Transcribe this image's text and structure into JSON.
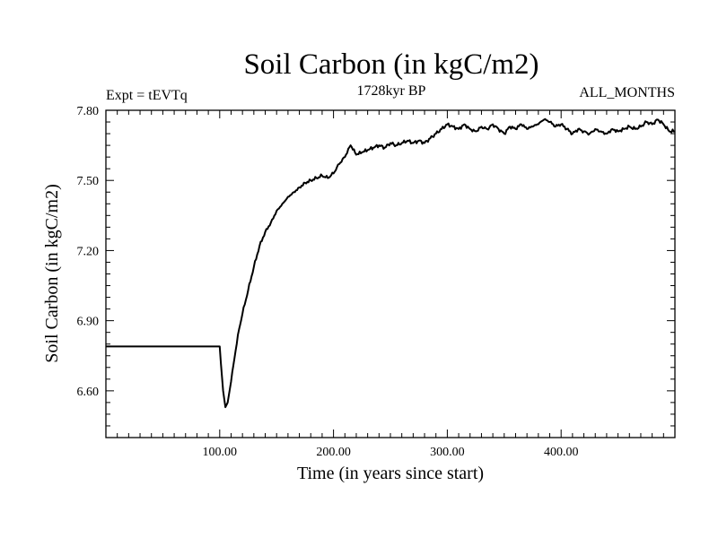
{
  "chart_data": {
    "type": "line",
    "title": "Soil Carbon (in kgC/m2)",
    "subtitle_left": "Expt = tEVTq",
    "subtitle_center": "1728kyr BP",
    "subtitle_right": "ALL_MONTHS",
    "xlabel": "Time (in years since start)",
    "ylabel": "Soil Carbon (in kgC/m2)",
    "xlim": [
      0,
      500
    ],
    "ylim": [
      6.4,
      7.8
    ],
    "xticks": [
      100,
      200,
      300,
      400
    ],
    "xtick_labels": [
      "100.00",
      "200.00",
      "300.00",
      "400.00"
    ],
    "yticks": [
      6.6,
      6.9,
      7.2,
      7.5,
      7.8
    ],
    "ytick_labels": [
      "6.60",
      "6.90",
      "7.20",
      "7.50",
      "7.80"
    ],
    "grid": false,
    "series": [
      {
        "name": "Soil Carbon",
        "color": "#000000",
        "x": [
          0,
          100,
          101,
          103,
          105,
          107,
          110,
          113,
          116,
          120,
          125,
          130,
          135,
          140,
          145,
          150,
          155,
          160,
          165,
          170,
          175,
          180,
          185,
          190,
          195,
          200,
          205,
          210,
          215,
          220,
          225,
          230,
          235,
          240,
          245,
          250,
          255,
          260,
          265,
          270,
          275,
          280,
          285,
          290,
          295,
          300,
          305,
          310,
          315,
          320,
          325,
          330,
          335,
          340,
          345,
          350,
          355,
          360,
          365,
          370,
          375,
          380,
          385,
          390,
          395,
          400,
          405,
          410,
          415,
          420,
          425,
          430,
          435,
          440,
          445,
          450,
          455,
          460,
          465,
          470,
          475,
          480,
          485,
          490,
          495,
          500
        ],
        "values": [
          6.79,
          6.79,
          6.72,
          6.6,
          6.53,
          6.55,
          6.64,
          6.74,
          6.84,
          6.93,
          7.03,
          7.13,
          7.22,
          7.28,
          7.32,
          7.37,
          7.4,
          7.43,
          7.45,
          7.47,
          7.49,
          7.5,
          7.51,
          7.52,
          7.51,
          7.53,
          7.57,
          7.6,
          7.65,
          7.61,
          7.62,
          7.63,
          7.64,
          7.65,
          7.64,
          7.66,
          7.65,
          7.66,
          7.67,
          7.66,
          7.67,
          7.66,
          7.68,
          7.7,
          7.72,
          7.74,
          7.73,
          7.72,
          7.74,
          7.72,
          7.71,
          7.73,
          7.72,
          7.74,
          7.72,
          7.7,
          7.73,
          7.72,
          7.74,
          7.72,
          7.73,
          7.74,
          7.76,
          7.75,
          7.73,
          7.74,
          7.72,
          7.7,
          7.72,
          7.71,
          7.7,
          7.72,
          7.71,
          7.7,
          7.72,
          7.71,
          7.72,
          7.73,
          7.72,
          7.73,
          7.75,
          7.74,
          7.76,
          7.74,
          7.71,
          7.71
        ]
      }
    ]
  }
}
